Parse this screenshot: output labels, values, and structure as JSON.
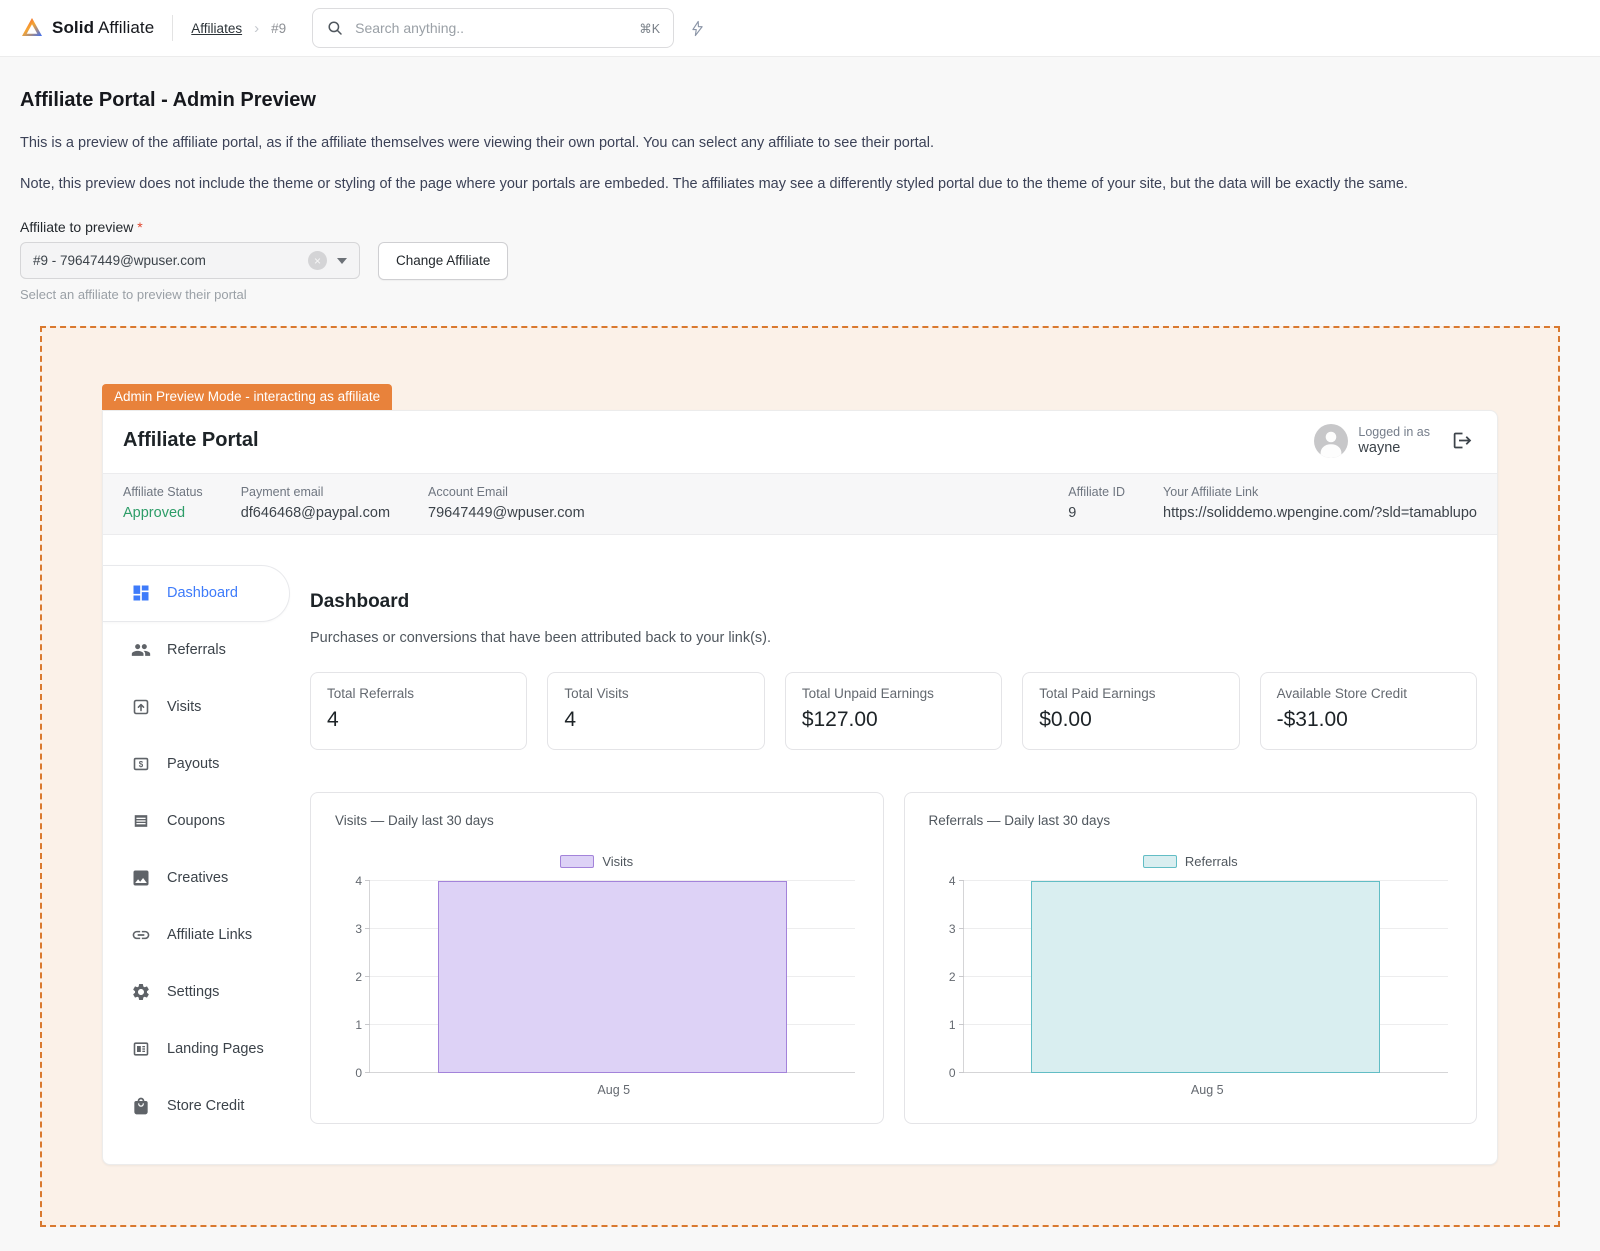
{
  "colors": {
    "accent_blue": "#3e7bfa",
    "badge_orange": "#e8823b",
    "dashed_border_orange": "#d9792f",
    "preview_bg": "#fbf1e8",
    "approved_green": "#2d9d68",
    "visits_fill": "#ddd2f6",
    "visits_border": "#a383da",
    "referrals_fill": "#d9eef0",
    "referrals_border": "#62bdc5"
  },
  "topbar": {
    "brand_bold": "Solid",
    "brand_regular": "Affiliate",
    "breadcrumb": {
      "link": "Affiliates",
      "separator": "›",
      "current": "#9"
    },
    "search": {
      "placeholder": "Search anything..",
      "shortcut": "⌘K"
    }
  },
  "page": {
    "title": "Affiliate Portal - Admin Preview",
    "description1": "This is a preview of the affiliate portal, as if the affiliate themselves were viewing their own portal. You can select any affiliate to see their portal.",
    "description2": "Note, this preview does not include the theme or styling of the page where your portals are embeded. The affiliates may see a differently styled portal due to the theme of your site, but the data will be exactly the same.",
    "affiliate_select": {
      "label": "Affiliate to preview",
      "required_mark": "*",
      "value": "#9 - 79647449@wpuser.com",
      "clear_x": "×",
      "change_button": "Change Affiliate",
      "help": "Select an affiliate to preview their portal"
    }
  },
  "preview": {
    "badge": "Admin Preview Mode - interacting as affiliate",
    "portal_title": "Affiliate Portal",
    "logged_in_label": "Logged in as",
    "username": "wayne",
    "status_bar": [
      {
        "label": "Affiliate Status",
        "value": "Approved"
      },
      {
        "label": "Payment email",
        "value": "df646468@paypal.com"
      },
      {
        "label": "Account Email",
        "value": "79647449@wpuser.com"
      },
      {
        "label": "Affiliate ID",
        "value": "9"
      },
      {
        "label": "Your Affiliate Link",
        "value": "https://soliddemo.wpengine.com/?sld=tamablupo"
      }
    ],
    "sidebar": [
      {
        "label": "Dashboard",
        "icon": "dashboard-icon"
      },
      {
        "label": "Referrals",
        "icon": "people-icon"
      },
      {
        "label": "Visits",
        "icon": "arrow-up-box-icon"
      },
      {
        "label": "Payouts",
        "icon": "dollar-box-icon"
      },
      {
        "label": "Coupons",
        "icon": "ticket-icon"
      },
      {
        "label": "Creatives",
        "icon": "image-icon"
      },
      {
        "label": "Affiliate Links",
        "icon": "link-icon"
      },
      {
        "label": "Settings",
        "icon": "gear-icon"
      },
      {
        "label": "Landing Pages",
        "icon": "layout-icon"
      },
      {
        "label": "Store Credit",
        "icon": "shopping-bag-icon"
      }
    ],
    "active_item": "Dashboard",
    "dashboard": {
      "heading": "Dashboard",
      "subheading": "Purchases or conversions that have been attributed back to your link(s).",
      "stats": [
        {
          "label": "Total Referrals",
          "value": "4"
        },
        {
          "label": "Total Visits",
          "value": "4"
        },
        {
          "label": "Total Unpaid Earnings",
          "value": "$127.00"
        },
        {
          "label": "Total Paid Earnings",
          "value": "$0.00"
        },
        {
          "label": "Available Store Credit",
          "value": "-$31.00"
        }
      ]
    }
  },
  "chart_data": [
    {
      "type": "bar",
      "title": "Visits — Daily last 30 days",
      "legend": "Visits",
      "categories": [
        "Aug 5"
      ],
      "values": [
        4
      ],
      "ylim": [
        0,
        4
      ],
      "yticks": [
        0,
        1,
        2,
        3,
        4
      ],
      "grid": true,
      "legend_position": "top",
      "bar_fill": "#ddd2f6",
      "bar_border": "#a383da"
    },
    {
      "type": "bar",
      "title": "Referrals — Daily last 30 days",
      "legend": "Referrals",
      "categories": [
        "Aug 5"
      ],
      "values": [
        4
      ],
      "ylim": [
        0,
        4
      ],
      "yticks": [
        0,
        1,
        2,
        3,
        4
      ],
      "grid": true,
      "legend_position": "top",
      "bar_fill": "#d9eef0",
      "bar_border": "#62bdc5"
    }
  ]
}
